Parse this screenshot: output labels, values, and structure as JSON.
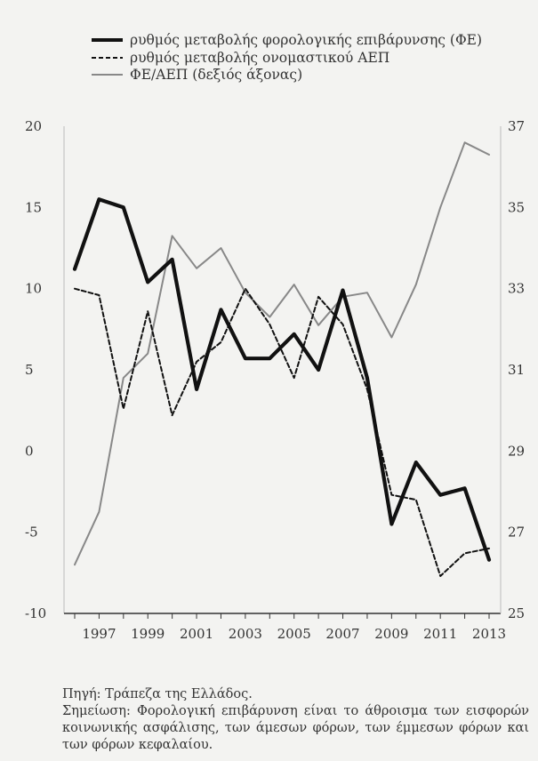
{
  "legend": [
    {
      "label": "ρυθμός μεταβολής φορολογικής επιβάρυνσης (ΦΕ)",
      "style": "solid-thick"
    },
    {
      "label": "ρυθμός μεταβολής ονομαστικού ΑΕΠ",
      "style": "dashed"
    },
    {
      "label": "ΦΕ/ΑΕΠ (δεξιός άξονας)",
      "style": "solid-thin"
    }
  ],
  "source": "Πηγή: Τράπεζα της Ελλάδος.",
  "note": "Σημείωση: Φορολογική επιβάρυνση είναι το άθροισμα των εισφορών κοινωνικής ασφάλισης, των άμεσων φόρων, των έμμεσων φόρων και των φόρων κεφαλαίου.",
  "chart_data": {
    "type": "line",
    "x": [
      1996,
      1997,
      1998,
      1999,
      2000,
      2001,
      2002,
      2003,
      2004,
      2005,
      2006,
      2007,
      2008,
      2009,
      2010,
      2011,
      2012,
      2013
    ],
    "x_tick_labels": [
      "1997",
      "1999",
      "2001",
      "2003",
      "2005",
      "2007",
      "2009",
      "2011",
      "2013"
    ],
    "y_left": {
      "range": [
        -10,
        20
      ],
      "ticks": [
        "20",
        "15",
        "10",
        "5",
        "0",
        "-5",
        "-10"
      ]
    },
    "y_right": {
      "range": [
        25,
        37
      ],
      "ticks": [
        "37",
        "35",
        "33",
        "31",
        "29",
        "27",
        "25"
      ]
    },
    "series": [
      {
        "name": "ρυθμός μεταβολής φορολογικής επιβάρυνσης (ΦΕ)",
        "axis": "left",
        "color": "#111111",
        "values": [
          11.2,
          15.5,
          15.0,
          10.4,
          11.8,
          3.8,
          8.7,
          5.7,
          5.7,
          7.2,
          5.0,
          9.9,
          4.5,
          -4.5,
          -0.7,
          -2.7,
          -2.3,
          -6.7
        ]
      },
      {
        "name": "ρυθμός μεταβολής ονομαστικού ΑΕΠ",
        "axis": "left",
        "color": "#111111",
        "values": [
          10.0,
          9.6,
          2.6,
          8.6,
          2.2,
          5.5,
          6.7,
          10.0,
          7.8,
          4.5,
          9.5,
          7.8,
          3.8,
          -2.7,
          -3.0,
          -7.7,
          -6.3,
          -6.0
        ]
      },
      {
        "name": "ΦΕ/ΑΕΠ (δεξιός άξονας)",
        "axis": "right",
        "color": "#888888",
        "values": [
          26.2,
          27.5,
          30.8,
          31.4,
          34.3,
          33.5,
          34.0,
          32.9,
          32.3,
          33.1,
          32.1,
          32.8,
          32.9,
          31.8,
          33.1,
          35.0,
          36.6,
          36.3
        ]
      }
    ],
    "grid": false,
    "legend_position": "top"
  }
}
